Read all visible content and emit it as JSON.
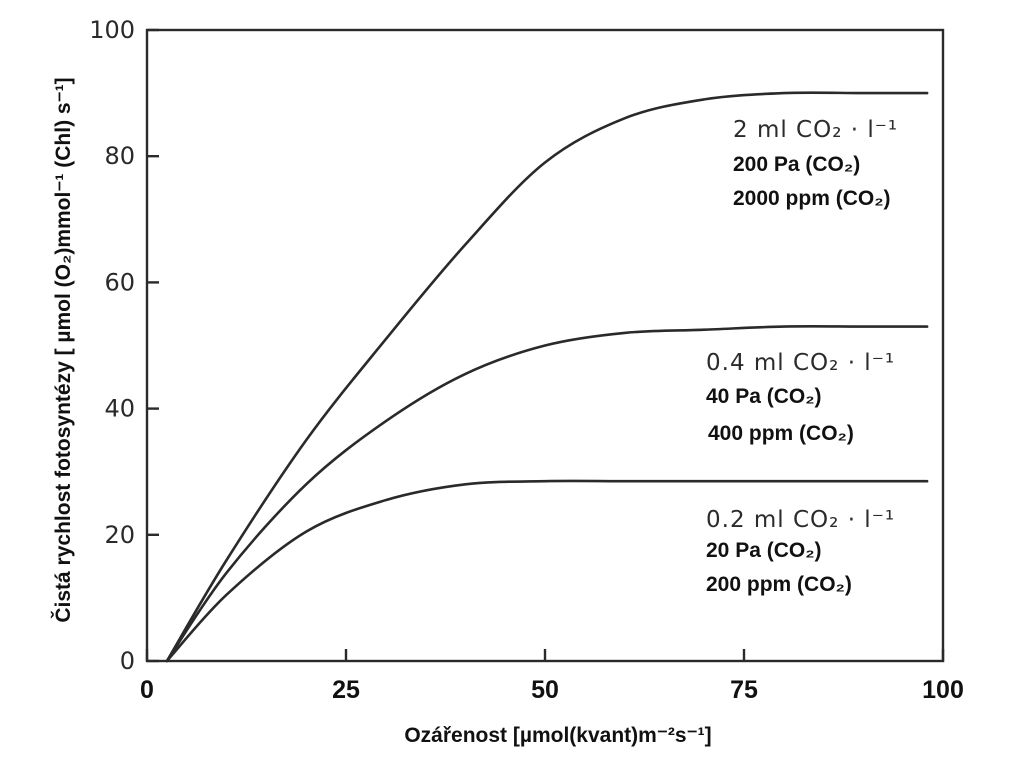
{
  "chart_data": {
    "type": "line",
    "xlabel": "Ozářenost [µmol(kvant)m⁻²s⁻¹]",
    "ylabel": "Čistá rychlost fotosyntézy [ µmol (O₂)mmol⁻¹ (Chl) s⁻¹]",
    "xlim": [
      0,
      100
    ],
    "ylim": [
      0,
      100
    ],
    "x_ticks": [
      "0",
      "25",
      "50",
      "75",
      "100"
    ],
    "y_ticks": [
      "0",
      "20",
      "40",
      "60",
      "80",
      "100"
    ],
    "grid": false,
    "series": [
      {
        "name": "2 ml CO₂ · l⁻¹",
        "label_lines": [
          "200 Pa (CO₂)",
          "2000 ppm (CO₂)"
        ],
        "x": [
          2.5,
          10,
          20,
          30,
          40,
          50,
          60,
          70,
          80,
          90,
          98
        ],
        "y": [
          0,
          16,
          35,
          51,
          66,
          79,
          86,
          89,
          90,
          90,
          90
        ]
      },
      {
        "name": "0.4 ml CO₂ · l⁻¹",
        "label_lines": [
          "40 Pa (CO₂)",
          "400 ppm (CO₂)"
        ],
        "x": [
          2.5,
          10,
          20,
          30,
          40,
          50,
          60,
          70,
          80,
          90,
          98
        ],
        "y": [
          0,
          14,
          28,
          38,
          45.5,
          50,
          52,
          52.5,
          53,
          53,
          53
        ]
      },
      {
        "name": "0.2 ml CO₂ · l⁻¹",
        "label_lines": [
          "20 Pa (CO₂)",
          "200 ppm (CO₂)"
        ],
        "x": [
          2.5,
          10,
          20,
          30,
          40,
          50,
          60,
          70,
          80,
          90,
          98
        ],
        "y": [
          0,
          10.5,
          20.5,
          25.5,
          28,
          28.5,
          28.5,
          28.5,
          28.5,
          28.5,
          28.5
        ]
      }
    ]
  }
}
